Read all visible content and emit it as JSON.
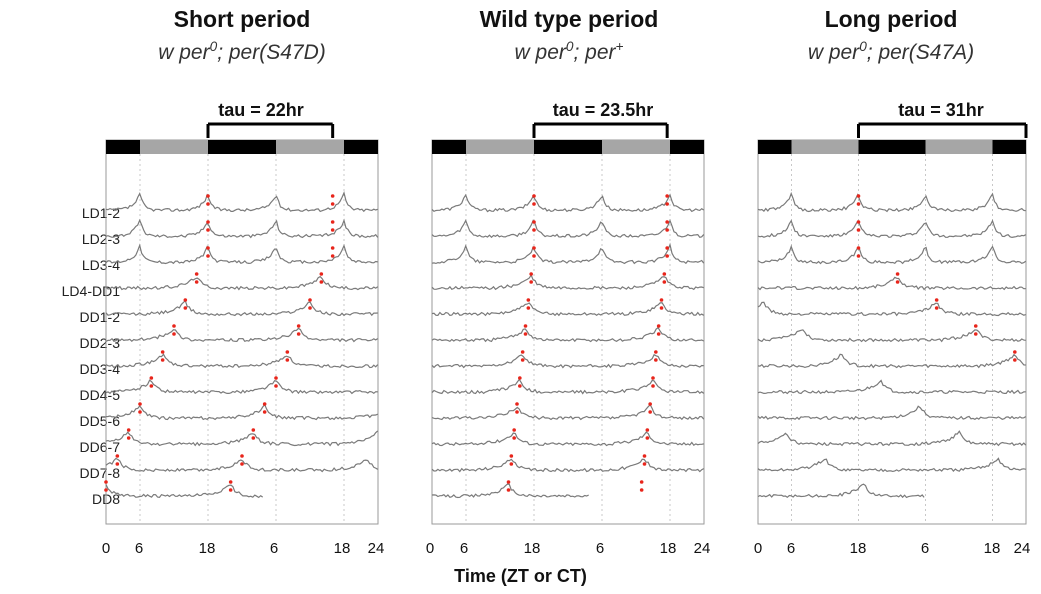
{
  "figure": {
    "xaxis_title": "Time (ZT or CT)"
  },
  "panels": [
    {
      "title": "Short period",
      "genotype_prefix": "w per",
      "genotype_sup": "0",
      "genotype_suffix": "; per(S47D)",
      "tau": "tau = 22hr"
    },
    {
      "title": "Wild type period",
      "genotype_prefix": "w per",
      "genotype_sup": "0",
      "genotype_suffix": "; per",
      "genotype_sup2": "+",
      "tau": "tau = 23.5hr"
    },
    {
      "title": "Long period",
      "genotype_prefix": "w per",
      "genotype_sup": "0",
      "genotype_suffix": "; per(S47A)",
      "tau": "tau = 31hr"
    }
  ],
  "chart_data": [
    {
      "type": "line",
      "title": "Short period",
      "subtitle": "w per0; per(S47D)",
      "annotation": "tau = 22hr",
      "xlabel": "Time (ZT or CT)",
      "xticks": [
        "0",
        "6",
        "18",
        "6",
        "18",
        "24"
      ],
      "rows": [
        "LD1-2",
        "LD2-3",
        "LD3-4",
        "LD4-DD1",
        "DD1-2",
        "DD2-3",
        "DD3-4",
        "DD4-5",
        "DD5-6",
        "DD6-7",
        "DD7-8",
        "DD8"
      ],
      "period_hr": 22
    },
    {
      "type": "line",
      "title": "Wild type period",
      "subtitle": "w per0; per+",
      "annotation": "tau = 23.5hr",
      "xlabel": "Time (ZT or CT)",
      "xticks": [
        "0",
        "6",
        "18",
        "6",
        "18",
        "24"
      ],
      "rows": [
        "LD1-2",
        "LD2-3",
        "LD3-4",
        "LD4-DD1",
        "DD1-2",
        "DD2-3",
        "DD3-4",
        "DD4-5",
        "DD5-6",
        "DD6-7",
        "DD7-8",
        "DD8"
      ],
      "period_hr": 23.5
    },
    {
      "type": "line",
      "title": "Long period",
      "subtitle": "w per0; per(S47A)",
      "annotation": "tau = 31hr",
      "xlabel": "Time (ZT or CT)",
      "xticks": [
        "0",
        "6",
        "18",
        "6",
        "18",
        "24"
      ],
      "rows": [
        "LD1-2",
        "LD2-3",
        "LD3-4",
        "LD4-DD1",
        "DD1-2",
        "DD2-3",
        "DD3-4",
        "DD4-5",
        "DD5-6",
        "DD6-7",
        "DD7-8",
        "DD8"
      ],
      "period_hr": 31
    }
  ],
  "colors": {
    "trace": "#7a7a7a",
    "dots": "#e8251b",
    "dark_bar": "#000000",
    "light_bar": "#a6a6a6",
    "frame": "#9a9a9a"
  }
}
